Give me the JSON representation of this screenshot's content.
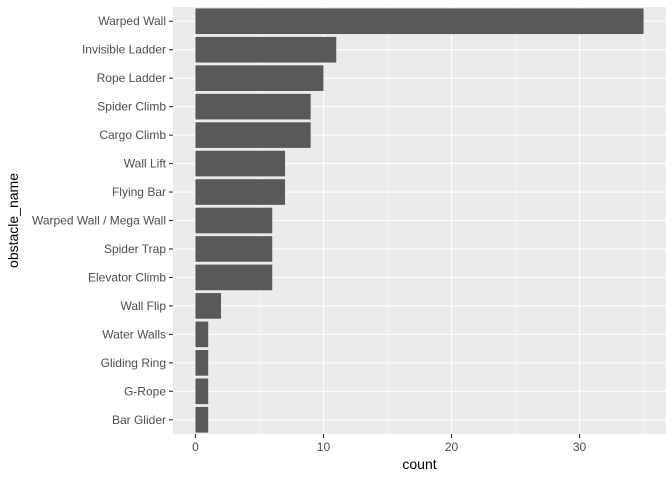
{
  "chart_data": {
    "type": "bar",
    "orientation": "horizontal",
    "title": "",
    "xlabel": "count",
    "ylabel": "obstacle_name",
    "categories": [
      "Warped Wall",
      "Invisible Ladder",
      "Rope Ladder",
      "Spider Climb",
      "Cargo Climb",
      "Wall Lift",
      "Flying Bar",
      "Warped Wall / Mega Wall",
      "Spider Trap",
      "Elevator Climb",
      "Wall Flip",
      "Water Walls",
      "Gliding Ring",
      "G-Rope",
      "Bar Glider"
    ],
    "values": [
      35,
      11,
      10,
      9,
      9,
      7,
      7,
      6,
      6,
      6,
      2,
      1,
      1,
      1,
      1
    ],
    "xlim": [
      -1.75,
      36.75
    ],
    "xticks": [
      0,
      10,
      20,
      30
    ],
    "grid": true,
    "legend": "none",
    "colors": {
      "bar": "#595959",
      "panel": "#ebebeb",
      "grid_major": "#ffffff",
      "tick_text": "#4d4d4d"
    }
  }
}
